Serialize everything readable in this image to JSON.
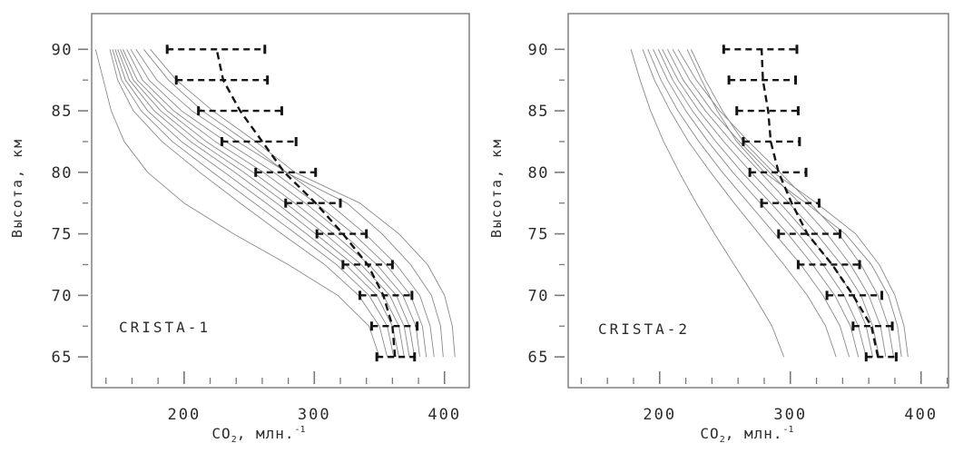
{
  "styles": {
    "background": "#ffffff",
    "box_color": "#6e6e6e",
    "tick_color": "#7a7a7a",
    "text_color": "#2b2b2b",
    "profile_line_color": "#8a8a8a",
    "mean_line_color": "#141414",
    "error_bar_color": "#141414"
  },
  "chart_data": [
    {
      "type": "line",
      "panel_label": "CRISTA-1",
      "ylabel": "Высота, км",
      "xlabel": {
        "pre": "CO",
        "sub": "2",
        "mid": ", млн.",
        "sup": "-1"
      },
      "x_tick_labels": [
        "200",
        "300",
        "400"
      ],
      "x_ticks_major": [
        200,
        300,
        400
      ],
      "x_ticks_minor": [
        140,
        160,
        180,
        220,
        240,
        260,
        280,
        320,
        340,
        360,
        380
      ],
      "y_tick_labels": [
        "65",
        "70",
        "75",
        "80",
        "85",
        "90"
      ],
      "y_ticks_major": [
        65,
        70,
        75,
        80,
        85,
        90
      ],
      "y_ticks_minor": [
        67.5,
        72.5,
        77.5,
        82.5,
        87.5
      ],
      "xlim": [
        129,
        419
      ],
      "ylim": [
        62.5,
        92.9
      ],
      "altitudes_km": [
        65,
        67.5,
        70,
        72.5,
        75,
        77.5,
        80,
        82.5,
        85,
        87.5,
        90
      ],
      "mean_profile": [
        362,
        360,
        353,
        341,
        322,
        301,
        277,
        260,
        243,
        230,
        225
      ],
      "error_bar_low": [
        348,
        344,
        335,
        322,
        302,
        278,
        255,
        229,
        211,
        194,
        187
      ],
      "error_bar_high": [
        377,
        379,
        375,
        360,
        340,
        320,
        301,
        286,
        275,
        264,
        262
      ],
      "individual_profiles": [
        [
          350,
          342,
          318,
          280,
          238,
          200,
          172,
          154,
          144,
          138,
          132
        ],
        [
          356,
          350,
          334,
          308,
          275,
          243,
          212,
          183,
          161,
          149,
          143
        ],
        [
          361,
          356,
          342,
          317,
          286,
          254,
          222,
          191,
          167,
          152,
          145
        ],
        [
          365,
          360,
          348,
          324,
          294,
          263,
          231,
          198,
          172,
          155,
          147
        ],
        [
          369,
          365,
          353,
          330,
          301,
          271,
          239,
          205,
          177,
          158,
          149
        ],
        [
          373,
          369,
          358,
          336,
          308,
          278,
          246,
          211,
          182,
          161,
          151
        ],
        [
          377,
          373,
          363,
          342,
          315,
          285,
          253,
          217,
          187,
          164,
          153
        ],
        [
          381,
          378,
          368,
          348,
          322,
          293,
          261,
          224,
          192,
          168,
          156
        ],
        [
          386,
          383,
          374,
          355,
          330,
          301,
          269,
          232,
          198,
          173,
          159
        ],
        [
          392,
          389,
          381,
          363,
          339,
          311,
          279,
          241,
          206,
          179,
          163
        ],
        [
          399,
          397,
          390,
          374,
          352,
          325,
          278,
          248,
          214,
          188,
          169
        ],
        [
          408,
          406,
          400,
          387,
          365,
          335,
          285,
          255,
          222,
          194,
          174
        ]
      ]
    },
    {
      "type": "line",
      "panel_label": "CRISTA-2",
      "ylabel": "Высота, км",
      "xlabel": {
        "pre": "CO",
        "sub": "2",
        "mid": ", млн.",
        "sup": "-1"
      },
      "x_tick_labels": [
        "200",
        "300",
        "400"
      ],
      "x_ticks_major": [
        200,
        300,
        400
      ],
      "x_ticks_minor": [
        140,
        160,
        180,
        220,
        240,
        260,
        280,
        320,
        340,
        360,
        380,
        420
      ],
      "y_tick_labels": [
        "65",
        "70",
        "75",
        "80",
        "85",
        "90"
      ],
      "y_ticks_major": [
        65,
        70,
        75,
        80,
        85,
        90
      ],
      "y_ticks_minor": [
        67.5,
        72.5,
        77.5,
        82.5,
        87.5
      ],
      "xlim": [
        130,
        421
      ],
      "ylim": [
        62.5,
        92.9
      ],
      "altitudes_km": [
        65,
        67.5,
        70,
        72.5,
        75,
        77.5,
        80,
        82.5,
        85,
        87.5,
        90
      ],
      "mean_profile": [
        367,
        362,
        348,
        332,
        313,
        301,
        291,
        285,
        283,
        279,
        278
      ],
      "error_bar_low": [
        358,
        348,
        328,
        306,
        291,
        278,
        269,
        264,
        259,
        253,
        249
      ],
      "error_bar_high": [
        381,
        378,
        370,
        353,
        338,
        322,
        312,
        307,
        306,
        304,
        305
      ],
      "individual_profiles": [
        [
          295,
          286,
          272,
          257,
          242,
          228,
          215,
          203,
          193,
          185,
          178
        ],
        [
          335,
          327,
          313,
          295,
          276,
          257,
          239,
          222,
          208,
          196,
          187
        ],
        [
          345,
          338,
          325,
          308,
          288,
          268,
          248,
          230,
          214,
          201,
          191
        ],
        [
          352,
          346,
          334,
          317,
          298,
          277,
          256,
          237,
          220,
          206,
          195
        ],
        [
          358,
          352,
          341,
          325,
          306,
          285,
          263,
          243,
          225,
          210,
          199
        ],
        [
          363,
          358,
          348,
          332,
          313,
          292,
          270,
          249,
          230,
          214,
          202
        ],
        [
          368,
          363,
          354,
          339,
          320,
          299,
          277,
          255,
          235,
          218,
          206
        ],
        [
          373,
          369,
          360,
          346,
          328,
          307,
          284,
          261,
          240,
          223,
          210
        ],
        [
          379,
          375,
          367,
          354,
          337,
          315,
          292,
          268,
          246,
          228,
          214
        ],
        [
          385,
          382,
          375,
          362,
          342,
          312,
          280,
          259,
          244,
          232,
          221
        ],
        [
          390,
          387,
          380,
          368,
          350,
          320,
          287,
          264,
          248,
          235,
          224
        ]
      ]
    }
  ]
}
